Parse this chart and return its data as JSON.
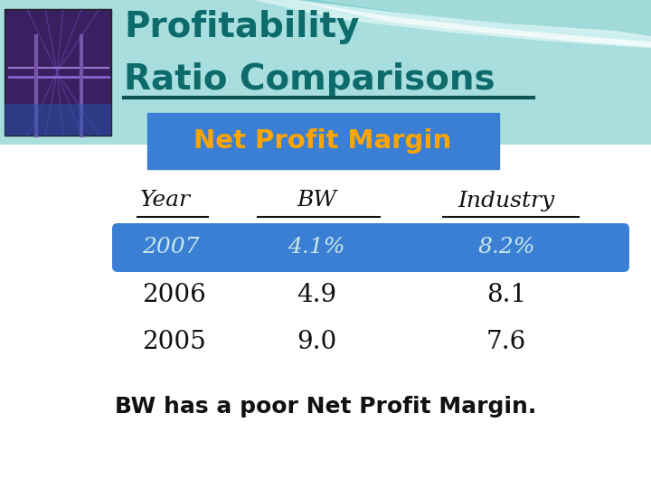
{
  "title_line1": "Profitability",
  "title_line2": "Ratio Comparisons",
  "title_color": "#0d6b6b",
  "title_underline_color": "#0d5555",
  "subtitle": "Net Profit Margin",
  "subtitle_bg_color": "#3a7fd4",
  "subtitle_text_color": "#FFA500",
  "header_year": "Year",
  "header_bw": "BW",
  "header_industry": "Industry",
  "rows": [
    {
      "year": "2007",
      "bw": "4.1%",
      "industry": "8.2%",
      "highlight": true
    },
    {
      "year": "2006",
      "bw": "4.9",
      "industry": "8.1",
      "highlight": false
    },
    {
      "year": "2005",
      "bw": "9.0",
      "industry": "7.6",
      "highlight": false
    }
  ],
  "highlight_bg_color": "#3a7fd4",
  "highlight_text_color": "#c8e8e8",
  "normal_text_color": "#111111",
  "footer": "BW has a poor Net Profit Margin.",
  "footer_color": "#111111",
  "bg_color": "#ffffff",
  "top_teal_color": "#a8dede",
  "wave_light": "#c8eeee",
  "wave_white": "#e8f8f8"
}
